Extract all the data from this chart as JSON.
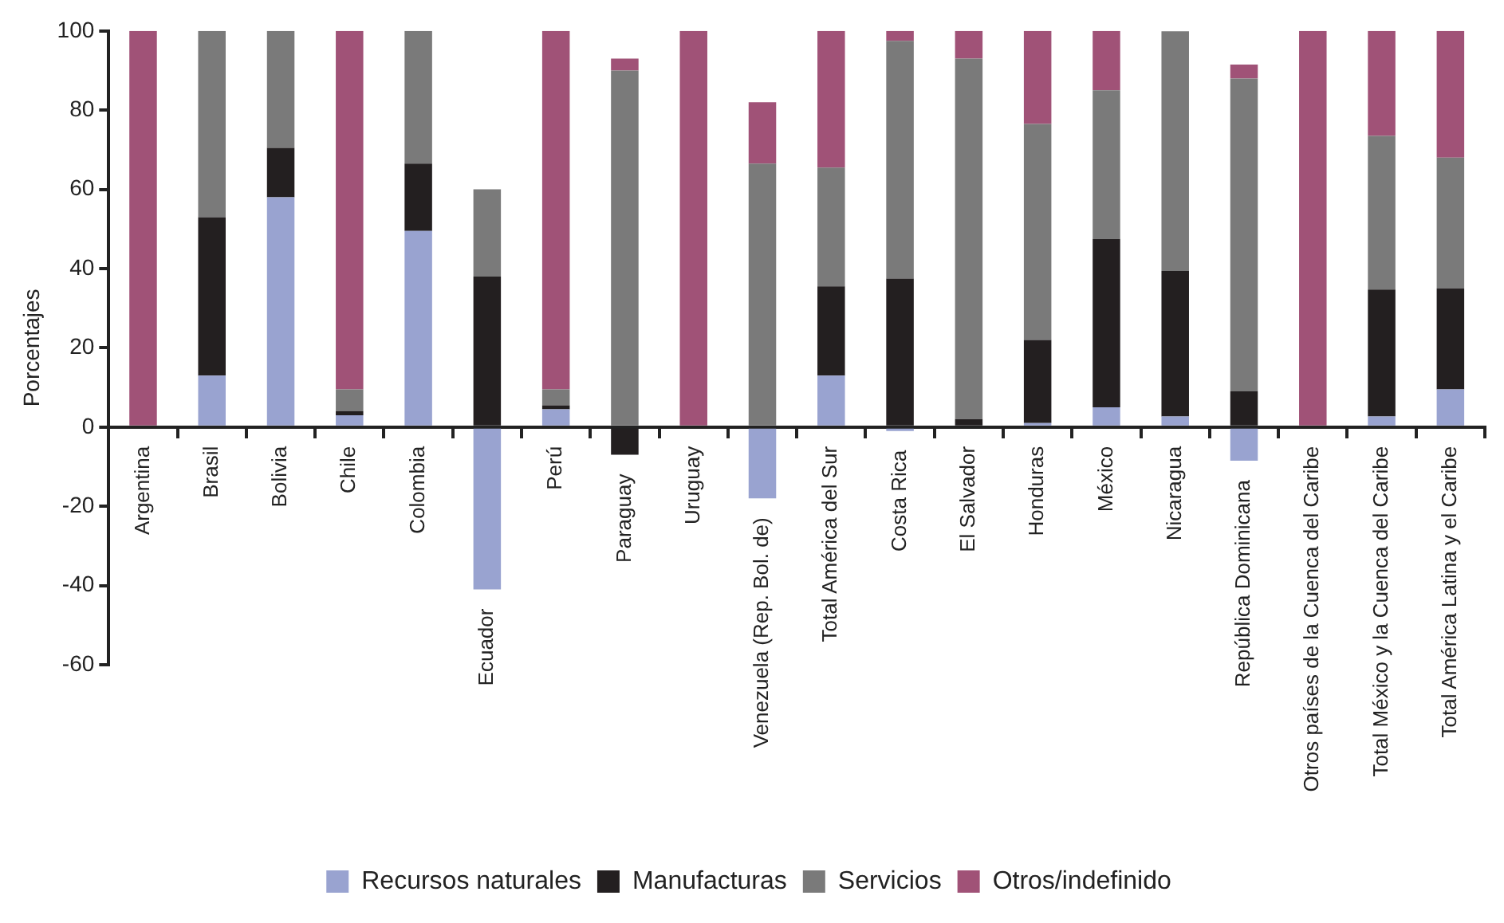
{
  "chart_data": {
    "type": "bar",
    "stacked": true,
    "ylabel": "Porcentajes",
    "ylim": [
      -60,
      100
    ],
    "yticks": [
      -60,
      -40,
      -20,
      0,
      20,
      40,
      60,
      80,
      100
    ],
    "grid": false,
    "legend": "bottom",
    "categories": [
      "Argentina",
      "Brasil",
      "Bolivia",
      "Chile",
      "Colombia",
      "Ecuador",
      "Perú",
      "Paraguay",
      "Uruguay",
      "Venezuela (Rep. Bol. de)",
      "Total América del Sur",
      "Costa Rica",
      "El Salvador",
      "Honduras",
      "México",
      "Nicaragua",
      "República Dominicana",
      "Otros países de la Cuenca del Caribe",
      "Total México y la Cuenca del Caribe",
      "Total América Latina y el Caribe"
    ],
    "series": [
      {
        "name": "Recursos naturales",
        "color": "#99a3d0",
        "values": [
          0,
          13,
          58,
          3,
          49.5,
          -41,
          4.5,
          0,
          0,
          -18,
          13,
          -1,
          0,
          1,
          5,
          2.7,
          -8.5,
          0,
          2.7,
          9.5
        ]
      },
      {
        "name": "Manufacturas",
        "color": "#231f20",
        "values": [
          0,
          40,
          12.5,
          1,
          17,
          38,
          1,
          -7,
          0,
          0,
          22.5,
          37.5,
          2,
          21,
          42.5,
          36.7,
          9,
          0,
          32,
          25.5
        ]
      },
      {
        "name": "Servicios",
        "color": "#7a7a7a",
        "values": [
          0,
          47,
          29.5,
          5.5,
          33.5,
          22,
          4,
          90,
          0,
          66.5,
          30,
          60,
          91,
          54.5,
          37.5,
          60.5,
          79,
          0,
          38.8,
          33
        ]
      },
      {
        "name": "Otros/indefinido",
        "color": "#a05277",
        "values": [
          100,
          0,
          0,
          90.5,
          0,
          0,
          90.5,
          3,
          100,
          15.5,
          34.5,
          2.5,
          7,
          23.5,
          15,
          0,
          3.5,
          100,
          26.5,
          32
        ]
      }
    ]
  }
}
